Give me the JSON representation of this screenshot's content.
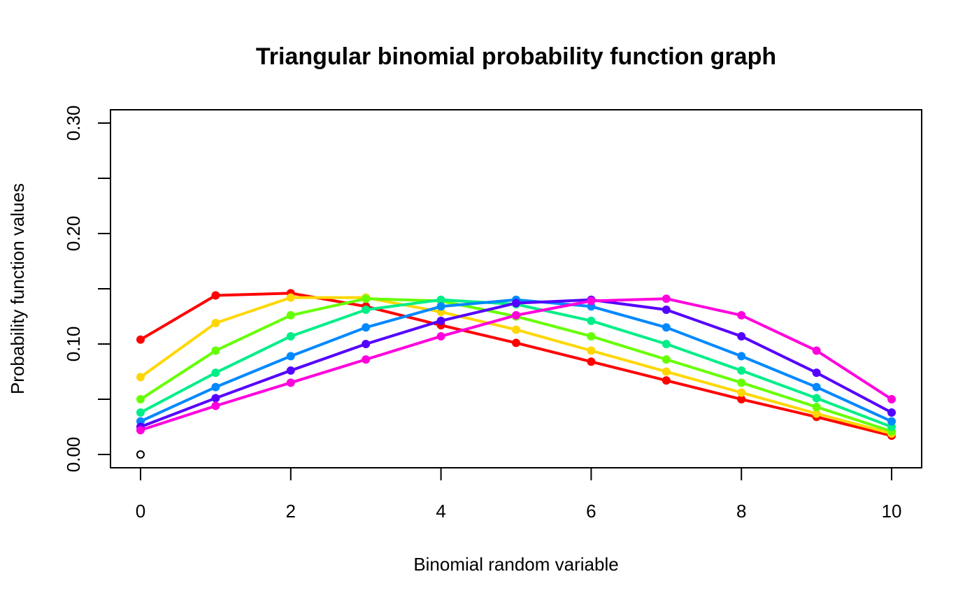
{
  "chart_data": {
    "type": "line",
    "title": "Triangular binomial probability function graph",
    "xlabel": "Binomial random variable",
    "ylabel": "Probability function values",
    "xlim": [
      -0.4,
      10.4
    ],
    "ylim": [
      -0.012,
      0.312
    ],
    "x_ticks": [
      0,
      2,
      4,
      6,
      8,
      10
    ],
    "x_tick_labels": [
      "0",
      "2",
      "4",
      "6",
      "8",
      "10"
    ],
    "y_ticks": [
      0.0,
      0.05,
      0.1,
      0.15,
      0.2,
      0.25,
      0.3
    ],
    "y_tick_labels": [
      "0.00",
      "",
      "0.10",
      "",
      "0.20",
      "",
      "0.30"
    ],
    "grid": false,
    "legend": "none",
    "x": [
      0,
      1,
      2,
      3,
      4,
      5,
      6,
      7,
      8,
      9,
      10
    ],
    "open_point": {
      "x": 0,
      "y": 0.0,
      "color": "#000000"
    },
    "series": [
      {
        "color": "#FF0000",
        "values": [
          0.104,
          0.144,
          0.146,
          0.134,
          0.117,
          0.101,
          0.084,
          0.067,
          0.05,
          0.034,
          0.017
        ]
      },
      {
        "color": "#FFD700",
        "values": [
          0.07,
          0.119,
          0.142,
          0.142,
          0.129,
          0.113,
          0.094,
          0.075,
          0.056,
          0.037,
          0.019
        ]
      },
      {
        "color": "#66FF00",
        "values": [
          0.05,
          0.094,
          0.126,
          0.141,
          0.139,
          0.125,
          0.107,
          0.086,
          0.065,
          0.043,
          0.021
        ]
      },
      {
        "color": "#00EE88",
        "values": [
          0.038,
          0.074,
          0.107,
          0.131,
          0.14,
          0.136,
          0.121,
          0.1,
          0.076,
          0.051,
          0.025
        ]
      },
      {
        "color": "#0088FF",
        "values": [
          0.03,
          0.061,
          0.089,
          0.115,
          0.134,
          0.14,
          0.134,
          0.115,
          0.089,
          0.061,
          0.03
        ]
      },
      {
        "color": "#5500FF",
        "values": [
          0.025,
          0.051,
          0.076,
          0.1,
          0.121,
          0.137,
          0.14,
          0.131,
          0.107,
          0.074,
          0.038
        ]
      },
      {
        "color": "#FF00DD",
        "values": [
          0.022,
          0.044,
          0.065,
          0.086,
          0.107,
          0.126,
          0.139,
          0.141,
          0.126,
          0.094,
          0.05
        ]
      }
    ]
  }
}
